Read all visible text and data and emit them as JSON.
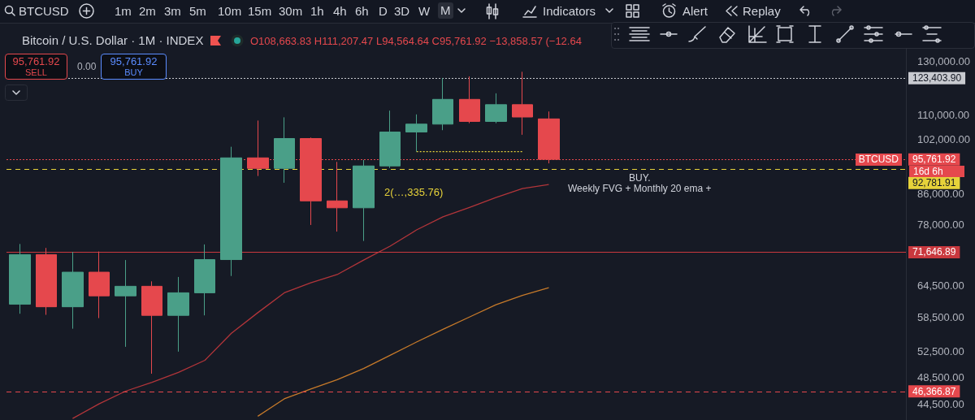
{
  "chart_data": {
    "type": "candlestick",
    "title": "Bitcoin / U.S. Dollar · 1M · INDEX",
    "subtitle": "O108,663.83 H111,207.47 L94,564.64 C95,761.92 −13,858.57 (−12.64",
    "categories": [
      null,
      null,
      null,
      null,
      null,
      null,
      null,
      null,
      null,
      null,
      null,
      null,
      null,
      null,
      null,
      null,
      null,
      null,
      null,
      null,
      null,
      null,
      null,
      null,
      null,
      null,
      null,
      null,
      null,
      null,
      null,
      null,
      null,
      null
    ],
    "ohlc": [
      [
        60900,
        73500,
        59100,
        71100
      ],
      [
        71100,
        72600,
        58900,
        60400
      ],
      [
        60400,
        71700,
        56400,
        67300
      ],
      [
        67300,
        71800,
        58300,
        62500
      ],
      [
        62500,
        69900,
        53300,
        64400
      ],
      [
        64400,
        65400,
        49000,
        58800
      ],
      [
        58800,
        66300,
        52500,
        63100
      ],
      [
        63100,
        73400,
        58800,
        70000
      ],
      [
        70000,
        99600,
        66500,
        96200
      ],
      [
        96200,
        108100,
        90900,
        93100
      ],
      [
        93100,
        109200,
        89000,
        102200
      ],
      [
        102200,
        102500,
        78000,
        84100
      ],
      [
        84100,
        95000,
        76400,
        82300
      ],
      [
        82300,
        95600,
        74200,
        93800
      ],
      [
        93800,
        111500,
        93200,
        104300
      ],
      [
        104300,
        110200,
        98100,
        106900
      ],
      [
        106900,
        123500,
        104900,
        115500
      ],
      [
        115500,
        124100,
        107200,
        107800
      ],
      [
        107800,
        117700,
        107200,
        113600
      ],
      [
        113600,
        125900,
        103400,
        109300
      ],
      [
        108663.83,
        111207.47,
        94564.64,
        95761.92
      ],
      null,
      null,
      null,
      null,
      null,
      null,
      null,
      null,
      null,
      null,
      null,
      null,
      null
    ],
    "colors": [
      "#4a9f88",
      "#e5484d",
      "#4a9f88",
      "#e5484d",
      "#4a9f88",
      "#e5484d",
      "#4a9f88",
      "#4a9f88",
      "#4a9f88",
      "#e5484d",
      "#4a9f88",
      "#e5484d",
      "#e5484d",
      "#4a9f88",
      "#4a9f88",
      "#4a9f88",
      "#4a9f88",
      "#e5484d",
      "#4a9f88",
      "#e5484d",
      "#e5484d",
      null,
      null,
      null,
      null,
      null,
      null,
      null,
      null,
      null,
      null,
      null,
      null,
      null
    ],
    "series": [
      {
        "type": "line",
        "color": "#b2353a",
        "values": [
          null,
          null,
          42600,
          44600,
          46400,
          47700,
          49200,
          51100,
          55600,
          59300,
          63100,
          65100,
          66800,
          69900,
          73000,
          76800,
          80000,
          82400,
          85000,
          87400,
          88500,
          null,
          null,
          null,
          null,
          null,
          null,
          null,
          null,
          null,
          null,
          null,
          null,
          null
        ]
      },
      {
        "type": "line",
        "color": "#c77a2a",
        "values": [
          null,
          null,
          null,
          null,
          null,
          null,
          null,
          null,
          null,
          42900,
          45300,
          46700,
          48100,
          49800,
          51900,
          54100,
          56300,
          58500,
          60800,
          62600,
          64100,
          null,
          null,
          null,
          null,
          null,
          null,
          null,
          null,
          null,
          null,
          null,
          null,
          null
        ]
      },
      {
        "type": "line",
        "color": "#e6d23a",
        "line_style": "dotted",
        "values": [
          null,
          null,
          null,
          null,
          null,
          null,
          null,
          null,
          null,
          null,
          null,
          null,
          null,
          null,
          null,
          98100,
          98100,
          98100,
          98100,
          98100,
          null,
          null,
          null,
          null,
          null,
          null,
          null,
          null,
          null,
          null,
          null,
          null,
          null,
          null
        ]
      }
    ],
    "log": "y",
    "ylim": [
      42400,
      135300
    ],
    "yticks": [
      {
        "value": 130000,
        "label": "130,000.00"
      },
      {
        "value": 110000,
        "label": "110,000.00"
      },
      {
        "value": 102000,
        "label": "102,000.00"
      },
      {
        "value": 86000,
        "label": "86,000.00"
      },
      {
        "value": 78000,
        "label": "78,000.00"
      },
      {
        "value": 64500,
        "label": "64,500.00"
      },
      {
        "value": 58500,
        "label": "58,500.00"
      },
      {
        "value": 52500,
        "label": "52,500.00"
      },
      {
        "value": 48500,
        "label": "48,500.00"
      },
      {
        "value": 44500,
        "label": "44,500.00"
      }
    ],
    "tick_labels": "y",
    "marker": "none",
    "line_style": "solid",
    "ref_lines": [
      {
        "axis": "y",
        "value": 123403.9,
        "label": "123,403.90",
        "color": "#c8cad0",
        "line_style": "dotted"
      },
      {
        "axis": "y",
        "value": 95761.92,
        "label": "95,761.92",
        "color": "#e5484d",
        "line_style": "dotted"
      },
      {
        "axis": "y",
        "value": 92781.91,
        "label": "92,781.91",
        "color": "#e6d23a",
        "line_style": "dashed"
      },
      {
        "axis": "y",
        "value": 71646.89,
        "label": "71,646.89",
        "color": "#c9383e",
        "line_style": "solid"
      },
      {
        "axis": "y",
        "value": 46366.87,
        "label": "46,366.87",
        "color": "#e5484d",
        "line_style": "dashed"
      }
    ],
    "annotations": [
      "BTCUSD",
      "1m 2m 3m 5m 10m 15m 30m 1h 4h 6h D 3D W M",
      "Indicators",
      "Alert",
      "Replay",
      "95,761.92",
      "SELL",
      "0.00",
      "95,761.92",
      "BUY",
      "16d 6h",
      "BTCUSD",
      "2(…,335.76)",
      "BUY.",
      "Weekly FVG + Monthly 20 ema +"
    ]
  }
}
